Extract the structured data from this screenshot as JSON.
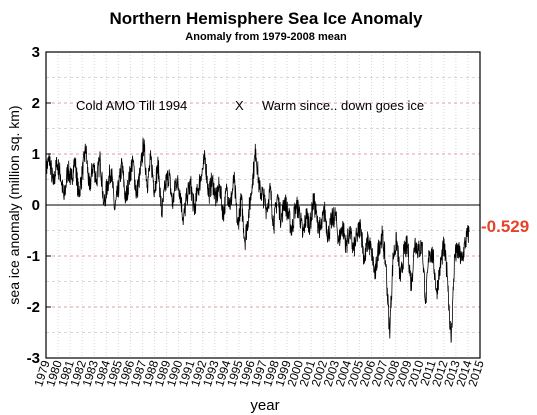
{
  "chart_data": {
    "type": "line",
    "title": "Northern Hemisphere Sea Ice Anomaly",
    "subtitle": "Anomaly from 1979-2008 mean",
    "xlabel": "year",
    "ylabel": "sea ice anomaly (million sq. km)",
    "xlim": [
      1979,
      2015
    ],
    "ylim": [
      -3,
      3
    ],
    "yticks": [
      -3,
      -2,
      -1,
      0,
      1,
      2,
      3
    ],
    "xticks": [
      1979,
      1980,
      1981,
      1982,
      1983,
      1984,
      1985,
      1986,
      1987,
      1988,
      1989,
      1990,
      1991,
      1992,
      1993,
      1994,
      1995,
      1996,
      1997,
      1998,
      1999,
      2000,
      2001,
      2002,
      2003,
      2004,
      2005,
      2006,
      2007,
      2008,
      2009,
      2010,
      2011,
      2012,
      2013,
      2014,
      2015
    ],
    "grid": true,
    "annotations": [
      "Cold AMO  Till 1994",
      "X",
      "Warm since.. down goes ice"
    ],
    "latest_value_label": "-0.529",
    "series": [
      {
        "x": [
          1979.0,
          1979.3,
          1979.6,
          1979.9,
          1980.2,
          1980.5,
          1980.8,
          1981.1,
          1981.4,
          1981.7,
          1982.0,
          1982.3,
          1982.6,
          1982.9,
          1983.2,
          1983.5,
          1983.8,
          1984.1,
          1984.4,
          1984.7,
          1985.0,
          1985.3,
          1985.6,
          1985.9,
          1986.2,
          1986.5,
          1986.8,
          1987.1,
          1987.4,
          1987.7,
          1988.0,
          1988.3,
          1988.6,
          1988.9,
          1989.2,
          1989.5,
          1989.8,
          1990.1,
          1990.4,
          1990.7,
          1991.0,
          1991.3,
          1991.6,
          1991.9,
          1992.2,
          1992.5,
          1992.8,
          1993.1,
          1993.4,
          1993.7,
          1994.0,
          1994.3,
          1994.6,
          1994.9,
          1995.2,
          1995.5,
          1995.8,
          1996.1,
          1996.4,
          1996.7,
          1997.0,
          1997.3,
          1997.6,
          1997.9,
          1998.2,
          1998.5,
          1998.8,
          1999.1,
          1999.4,
          1999.7,
          2000.0,
          2000.3,
          2000.6,
          2000.9,
          2001.2,
          2001.5,
          2001.8,
          2002.1,
          2002.4,
          2002.7,
          2003.0,
          2003.3,
          2003.6,
          2003.9,
          2004.2,
          2004.5,
          2004.8,
          2005.1,
          2005.4,
          2005.7,
          2006.0,
          2006.3,
          2006.6,
          2006.9,
          2007.2,
          2007.5,
          2007.8,
          2008.1,
          2008.4,
          2008.7,
          2009.0,
          2009.3,
          2009.6,
          2009.9,
          2010.2,
          2010.5,
          2010.8,
          2011.1,
          2011.4,
          2011.7,
          2012.0,
          2012.3,
          2012.6,
          2012.9,
          2013.2,
          2013.5,
          2013.8,
          2014.1
        ],
        "y": [
          0.7,
          0.9,
          0.4,
          0.8,
          0.6,
          0.1,
          0.7,
          0.5,
          0.9,
          0.2,
          0.6,
          1.1,
          0.3,
          0.8,
          0.5,
          0.9,
          0.0,
          0.4,
          0.7,
          -0.1,
          0.3,
          0.8,
          0.1,
          0.5,
          0.9,
          0.2,
          0.6,
          1.2,
          0.4,
          0.9,
          0.3,
          0.8,
          -0.2,
          0.4,
          0.6,
          0.0,
          0.5,
          0.3,
          -0.3,
          0.2,
          0.4,
          -0.1,
          0.3,
          0.6,
          0.9,
          0.2,
          0.5,
          0.1,
          0.4,
          -0.2,
          0.3,
          0.0,
          0.5,
          -0.4,
          0.1,
          -0.7,
          -0.2,
          0.4,
          1.1,
          0.3,
          0.2,
          -0.1,
          0.3,
          -0.4,
          0.2,
          -0.3,
          0.1,
          -0.2,
          -0.5,
          0.0,
          -0.1,
          -0.6,
          -0.2,
          -0.4,
          0.1,
          -0.3,
          -0.5,
          -0.1,
          -0.6,
          -0.3,
          -0.2,
          -0.7,
          -0.4,
          -0.8,
          -0.5,
          -0.9,
          -0.6,
          -0.4,
          -1.1,
          -0.7,
          -0.9,
          -1.4,
          -0.8,
          -0.6,
          -1.2,
          -2.5,
          -1.0,
          -0.7,
          -1.5,
          -0.9,
          -0.8,
          -1.6,
          -0.7,
          -0.9,
          -0.8,
          -1.9,
          -0.9,
          -1.0,
          -1.7,
          -1.2,
          -0.8,
          -1.4,
          -2.7,
          -1.0,
          -0.9,
          -1.1,
          -0.7,
          -0.529
        ]
      }
    ]
  }
}
